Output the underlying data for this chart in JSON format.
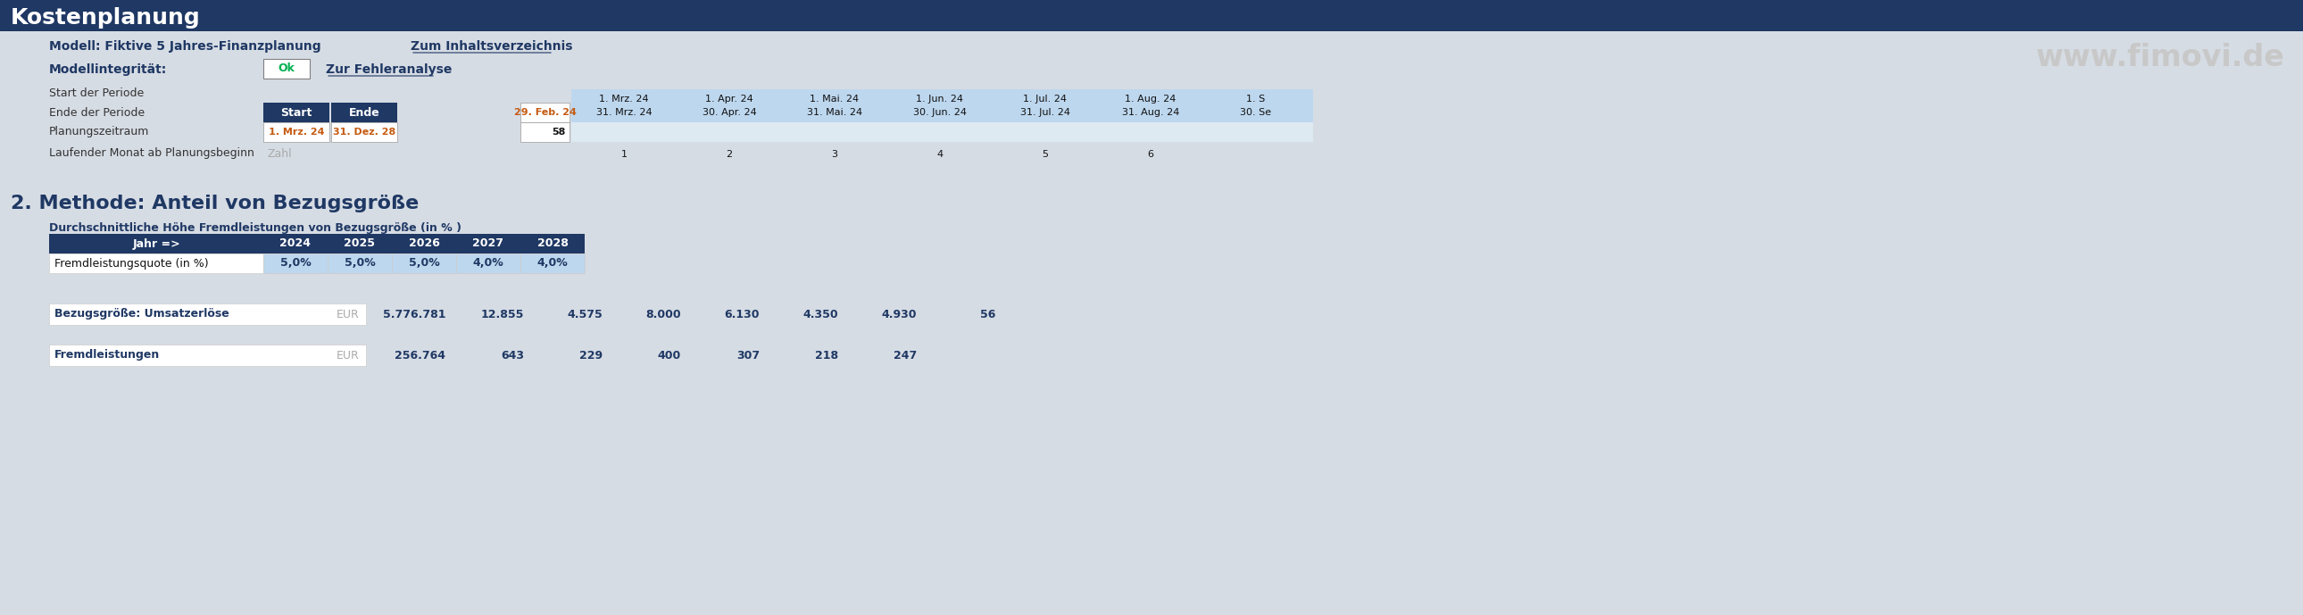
{
  "title_bar_text": "Kostenplanung",
  "title_bar_bg": "#1F3864",
  "title_bar_text_color": "#FFFFFF",
  "bg_color": "#D6DCE4",
  "modell_label": "Modell: Fiktive 5 Jahres-Finanzplanung",
  "modell_font_color": "#1F3864",
  "link1_text": "Zum Inhaltsverzeichnis",
  "link2_text": "Zur Fehleranalyse",
  "link_color": "#1F3864",
  "modellintegritaet_label": "Modellintegrität:",
  "ok_text": "Ok",
  "ok_color": "#00B050",
  "ok_box_bg": "#FFFFFF",
  "ok_box_border": "#808080",
  "row_label_start": "Start der Periode",
  "row_label_ende": "Ende der Periode",
  "row_label_plan": "Planungszeitraum",
  "row_label_lauf": "Laufender Monat ab Planungsbeginn",
  "start_end_header_bg": "#1F3864",
  "start_end_header_text": "#FFFFFF",
  "start_label": "Start",
  "end_label": "Ende",
  "planungszeitraum_start": "1. Mrz. 24",
  "planungszeitraum_end": "31. Dez. 28",
  "period_date_color": "#C55A11",
  "zahl_text": "Zahl",
  "zahl_color": "#AAAAAA",
  "period_value": "58",
  "cell_border_color": "#999999",
  "cell_bg_white": "#FFFFFF",
  "month_header_bg": "#BDD7EE",
  "month_stripe_bg": "#DEEAF1",
  "month_headers": [
    "1. Mrz. 24",
    "1. Apr. 24",
    "1. Mai. 24",
    "1. Jun. 24",
    "1. Jul. 24",
    "1. Aug. 24",
    "1. S"
  ],
  "month_ends": [
    "31. Mrz. 24",
    "30. Apr. 24",
    "31. Mai. 24",
    "30. Jun. 24",
    "31. Jul. 24",
    "31. Aug. 24",
    "30. Se"
  ],
  "month_numbers": [
    "1",
    "2",
    "3",
    "4",
    "5",
    "6"
  ],
  "feb24_val": "29. Feb. 24",
  "fimovi_text": "www.fimovi.de",
  "fimovi_color": "#C8C8C8",
  "section2_title": "2. Methode: Anteil von Bezugsgröße",
  "section2_title_color": "#1F3864",
  "section2_subtitle": "Durchschnittliche Höhe Fremdleistungen von Bezugsgröße (in % )",
  "section2_subtitle_color": "#1F3864",
  "table2_header_bg": "#1F3864",
  "table2_header_text": "#FFFFFF",
  "table2_col0_label": "Jahr =>",
  "table2_years": [
    "2024",
    "2025",
    "2026",
    "2027",
    "2028"
  ],
  "table2_row_label": "Fremdleistungsquote (in %)",
  "table2_values": [
    "5,0%",
    "5,0%",
    "5,0%",
    "4,0%",
    "4,0%"
  ],
  "table2_data_bg": "#BDD7EE",
  "table2_data_color": "#1F3864",
  "row3_label": "Bezugsgröße: Umsatzerlöse",
  "row3_unit": "EUR",
  "row3_values": [
    "5.776.781",
    "12.855",
    "4.575",
    "8.000",
    "6.130",
    "4.350",
    "4.930",
    "56"
  ],
  "row4_label": "Fremdleistungen",
  "row4_unit": "EUR",
  "row4_values": [
    "256.764",
    "643",
    "229",
    "400",
    "307",
    "218",
    "247"
  ],
  "data_text_color": "#1F3864",
  "unit_color": "#AAAAAA"
}
